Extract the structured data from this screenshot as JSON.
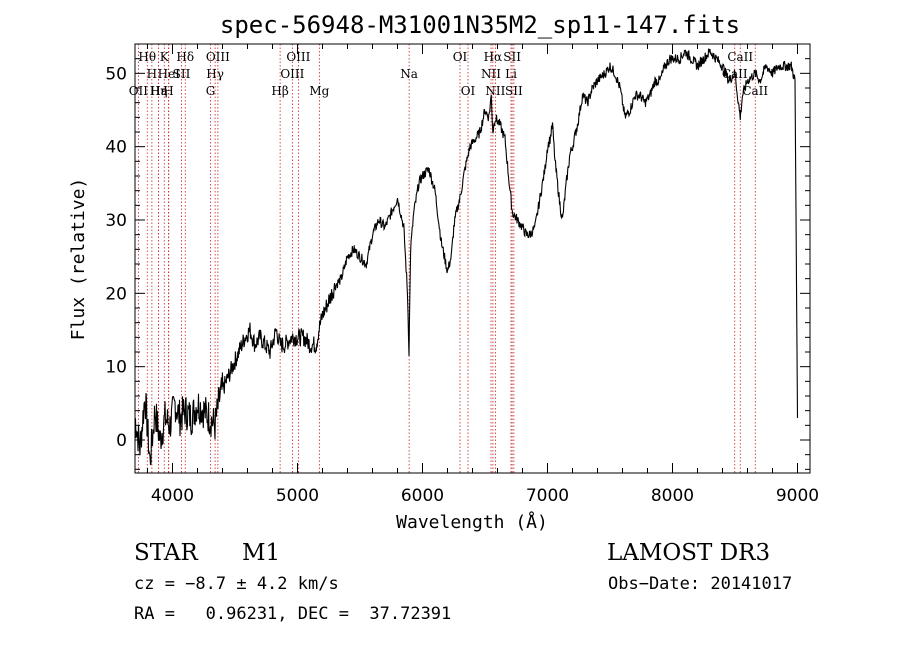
{
  "chart_data": {
    "type": "line",
    "title": "spec-56948-M31001N35M2_sp11-147.fits",
    "xlabel": "Wavelength (Å)",
    "ylabel": "Flux (relative)",
    "xlim": [
      3700,
      9100
    ],
    "ylim": [
      -4.5,
      54
    ],
    "xticks": [
      4000,
      5000,
      6000,
      7000,
      8000,
      9000
    ],
    "yticks": [
      0,
      10,
      20,
      30,
      40,
      50
    ],
    "series": [
      {
        "name": "flux",
        "x": [
          3700,
          3740,
          3780,
          3820,
          3860,
          3900,
          3940,
          3980,
          4020,
          4060,
          4100,
          4150,
          4200,
          4250,
          4300,
          4340,
          4380,
          4430,
          4480,
          4530,
          4580,
          4620,
          4660,
          4700,
          4740,
          4780,
          4830,
          4860,
          4900,
          4950,
          5000,
          5050,
          5100,
          5150,
          5170,
          5200,
          5250,
          5300,
          5350,
          5400,
          5450,
          5500,
          5550,
          5600,
          5650,
          5700,
          5750,
          5800,
          5850,
          5880,
          5892,
          5905,
          5930,
          5970,
          6000,
          6050,
          6100,
          6150,
          6200,
          6230,
          6250,
          6270,
          6300,
          6340,
          6380,
          6420,
          6460,
          6500,
          6530,
          6550,
          6563,
          6580,
          6620,
          6660,
          6700,
          6720,
          6760,
          6800,
          6830,
          6860,
          6900,
          6940,
          6980,
          7000,
          7020,
          7040,
          7060,
          7100,
          7120,
          7150,
          7180,
          7200,
          7240,
          7280,
          7320,
          7360,
          7400,
          7460,
          7500,
          7540,
          7580,
          7620,
          7660,
          7700,
          7740,
          7780,
          7820,
          7860,
          7900,
          7940,
          7980,
          8020,
          8060,
          8100,
          8150,
          8200,
          8250,
          8300,
          8350,
          8400,
          8450,
          8500,
          8520,
          8542,
          8560,
          8600,
          8662,
          8700,
          8750,
          8800,
          8850,
          8900,
          8950,
          8980,
          9000
        ],
        "y": [
          3,
          -1,
          6,
          -3,
          4,
          0,
          3,
          2,
          5,
          3,
          4,
          3,
          5,
          4,
          3,
          2,
          6,
          8,
          10,
          12,
          14,
          15,
          13,
          14,
          13,
          12,
          15,
          13,
          13,
          14,
          14,
          14,
          13,
          13,
          15,
          17,
          19,
          21,
          22,
          25,
          26,
          25,
          24,
          28,
          30,
          29,
          31,
          33,
          29,
          20,
          12,
          26,
          31,
          35,
          36,
          37,
          34,
          27,
          23,
          25,
          29,
          31,
          33,
          37,
          40,
          41,
          42,
          45,
          44,
          47,
          42,
          44,
          43,
          41,
          34,
          31,
          30,
          29,
          28,
          28,
          29,
          33,
          37,
          40,
          41,
          43,
          38,
          32,
          30,
          35,
          39,
          40,
          43,
          47,
          46,
          48,
          49,
          50,
          51,
          50,
          48,
          44,
          45,
          47,
          47,
          46,
          47,
          49,
          49,
          51,
          52,
          52,
          52,
          53,
          52,
          51,
          52,
          53,
          52,
          51,
          49,
          50,
          47,
          44,
          47,
          49,
          50,
          49,
          51,
          50,
          51,
          51,
          51,
          49,
          3
        ]
      }
    ],
    "line_ids": [
      {
        "name": "Hθ",
        "wave": 3798,
        "row": 0
      },
      {
        "name": "H",
        "wave": 3835,
        "row": 1
      },
      {
        "name": "OII",
        "wave": 3727,
        "row": 2
      },
      {
        "name": "Hε",
        "wave": 3889,
        "row": 2
      },
      {
        "name": "K",
        "wave": 3934,
        "row": 0
      },
      {
        "name": "HeI",
        "wave": 3970,
        "row": 1
      },
      {
        "name": "Hη",
        "wave": 3889,
        "row": 2
      },
      {
        "name": "H",
        "wave": 3968,
        "row": 2
      },
      {
        "name": "SII",
        "wave": 4072,
        "row": 1
      },
      {
        "name": "Hδ",
        "wave": 4102,
        "row": 0
      },
      {
        "name": "OIII",
        "wave": 4363,
        "row": 0
      },
      {
        "name": "Hγ",
        "wave": 4341,
        "row": 1
      },
      {
        "name": "G",
        "wave": 4304,
        "row": 2
      },
      {
        "name": "Hβ",
        "wave": 4861,
        "row": 2
      },
      {
        "name": "OIII",
        "wave": 5007,
        "row": 0
      },
      {
        "name": "OIII",
        "wave": 4959,
        "row": 1
      },
      {
        "name": "Mg",
        "wave": 5175,
        "row": 2
      },
      {
        "name": "Na",
        "wave": 5893,
        "row": 1
      },
      {
        "name": "OI",
        "wave": 6300,
        "row": 0
      },
      {
        "name": "OI",
        "wave": 6364,
        "row": 2
      },
      {
        "name": "Hα",
        "wave": 6563,
        "row": 0
      },
      {
        "name": "NII",
        "wave": 6548,
        "row": 1
      },
      {
        "name": "NII",
        "wave": 6583,
        "row": 2
      },
      {
        "name": "SII",
        "wave": 6717,
        "row": 0
      },
      {
        "name": "Li",
        "wave": 6708,
        "row": 1
      },
      {
        "name": "SII",
        "wave": 6731,
        "row": 2
      },
      {
        "name": "CaII",
        "wave": 8542,
        "row": 0
      },
      {
        "name": "CaII",
        "wave": 8498,
        "row": 1
      },
      {
        "name": "CaII",
        "wave": 8662,
        "row": 2
      }
    ]
  },
  "info": {
    "obj_class": "STAR",
    "subclass": "M1",
    "survey": "LAMOST DR3",
    "velocity": "cz = −8.7 ± 4.2 km/s",
    "obs_date": "Obs−Date: 20141017",
    "coords": "RA =   0.96231, DEC =  37.72391"
  }
}
